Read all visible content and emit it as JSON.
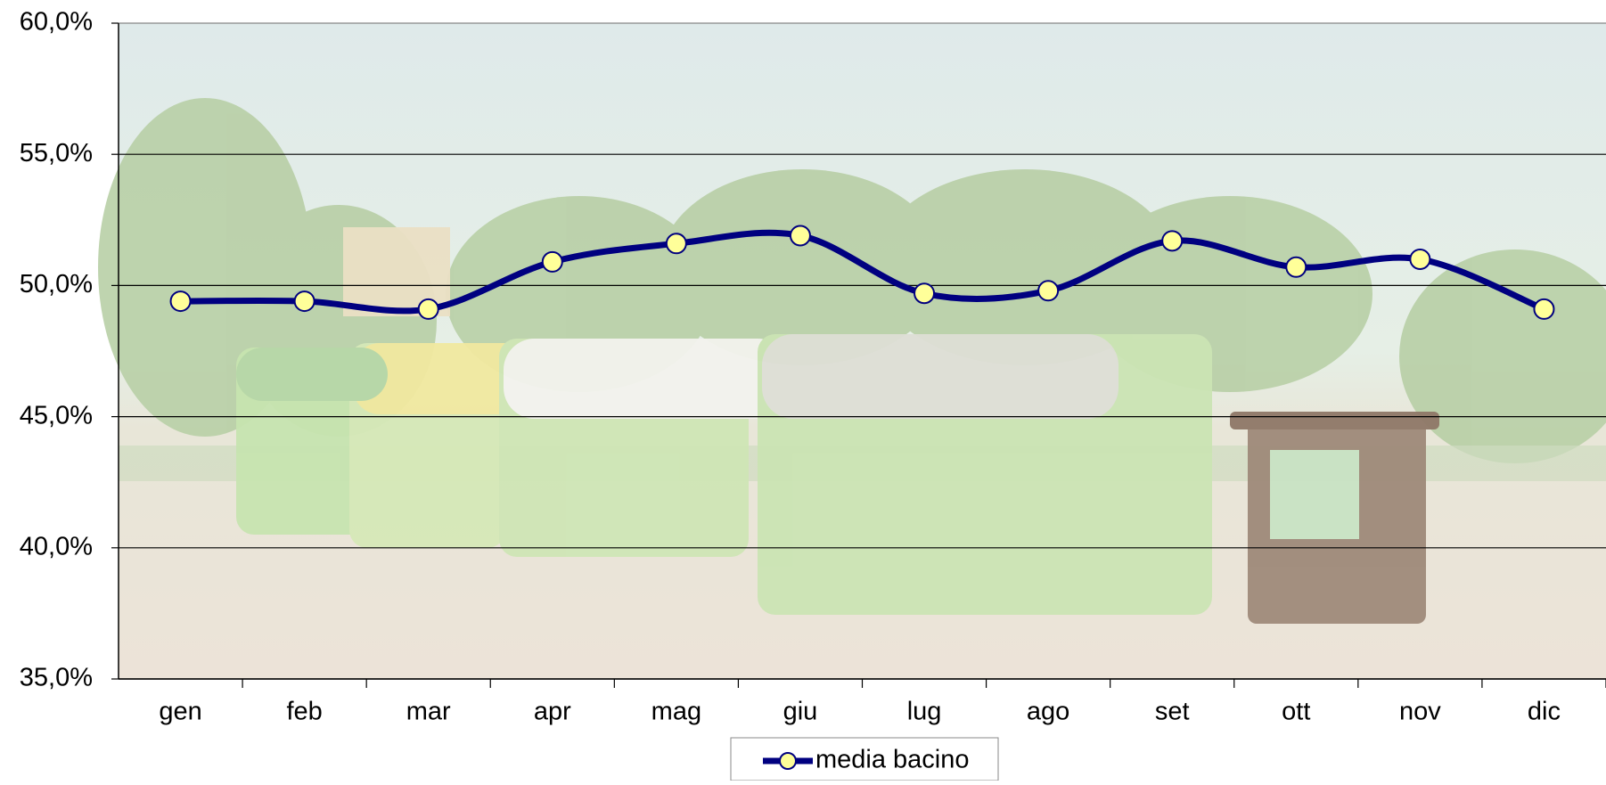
{
  "chart_data": {
    "type": "line",
    "categories": [
      "gen",
      "feb",
      "mar",
      "apr",
      "mag",
      "giu",
      "lug",
      "ago",
      "set",
      "ott",
      "nov",
      "dic"
    ],
    "series": [
      {
        "name": "media bacino",
        "color": "#000080",
        "marker_color": "#ffff99",
        "values": [
          49.4,
          49.4,
          49.1,
          50.9,
          51.6,
          51.9,
          49.7,
          49.8,
          51.7,
          50.7,
          51.0,
          49.1
        ]
      }
    ],
    "ylim": [
      35,
      60
    ],
    "yticks": [
      {
        "value": 35,
        "label": "35,0%"
      },
      {
        "value": 40,
        "label": "40,0%"
      },
      {
        "value": 45,
        "label": "45,0%"
      },
      {
        "value": 50,
        "label": "50,0%"
      },
      {
        "value": 55,
        "label": "55,0%"
      },
      {
        "value": 60,
        "label": "60,0%"
      }
    ],
    "grid": true,
    "smooth": true,
    "legend": "bottom"
  }
}
